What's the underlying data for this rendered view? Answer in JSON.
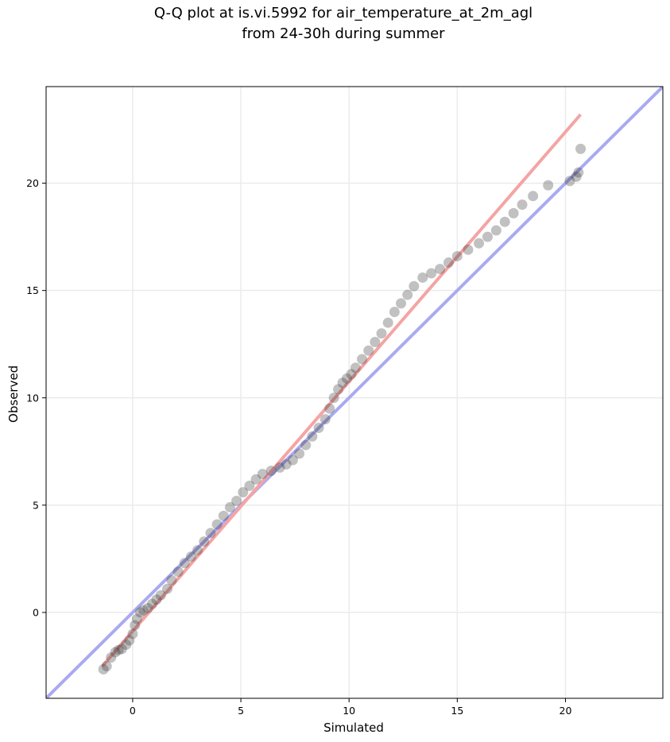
{
  "chart_data": {
    "type": "scatter",
    "title_line1": "Q-Q plot at is.vi.5992 for air_temperature_at_2m_agl",
    "title_line2": "from 24-30h during summer",
    "xlabel": "Simulated",
    "ylabel": "Observed",
    "xlim": [
      -4.0,
      24.5
    ],
    "ylim": [
      -4.0,
      24.5
    ],
    "xticks": [
      0,
      5,
      10,
      15,
      20
    ],
    "yticks": [
      0,
      5,
      10,
      15,
      20
    ],
    "xtick_labels": [
      "0",
      "5",
      "10",
      "15",
      "20"
    ],
    "ytick_labels": [
      "0",
      "5",
      "10",
      "15",
      "20"
    ],
    "grid": true,
    "colors": {
      "points": "#333333",
      "identity_line": "#aaaaf0",
      "fit_line": "#f4a4a4",
      "grid": "#ebebeb"
    },
    "identity_line": {
      "x": [
        -4.0,
        24.5
      ],
      "y": [
        -4.0,
        24.5
      ]
    },
    "fit_line": {
      "x": [
        -1.4,
        20.7
      ],
      "y": [
        -2.5,
        23.2
      ]
    },
    "points": {
      "x": [
        -1.35,
        -1.2,
        -1.0,
        -0.8,
        -0.65,
        -0.5,
        -0.3,
        -0.15,
        0.0,
        0.1,
        0.2,
        0.35,
        0.5,
        0.7,
        0.9,
        1.1,
        1.3,
        1.6,
        1.8,
        2.1,
        2.4,
        2.7,
        3.0,
        3.3,
        3.6,
        3.9,
        4.2,
        4.5,
        4.8,
        5.1,
        5.4,
        5.7,
        6.0,
        6.4,
        6.8,
        7.1,
        7.4,
        7.7,
        8.0,
        8.3,
        8.6,
        8.9,
        9.1,
        9.3,
        9.5,
        9.7,
        9.9,
        10.1,
        10.3,
        10.6,
        10.9,
        11.2,
        11.5,
        11.8,
        12.1,
        12.4,
        12.7,
        13.0,
        13.4,
        13.8,
        14.2,
        14.6,
        15.0,
        15.5,
        16.0,
        16.4,
        16.8,
        17.2,
        17.6,
        18.0,
        18.5,
        19.2,
        20.2,
        20.5,
        20.6,
        20.7
      ],
      "y": [
        -2.65,
        -2.5,
        -2.1,
        -1.85,
        -1.75,
        -1.7,
        -1.5,
        -1.3,
        -1.0,
        -0.6,
        -0.3,
        0.0,
        0.1,
        0.2,
        0.4,
        0.6,
        0.8,
        1.1,
        1.5,
        1.9,
        2.3,
        2.6,
        2.9,
        3.3,
        3.7,
        4.1,
        4.5,
        4.9,
        5.2,
        5.6,
        5.9,
        6.2,
        6.45,
        6.6,
        6.75,
        6.9,
        7.1,
        7.4,
        7.8,
        8.2,
        8.6,
        9.0,
        9.5,
        10.0,
        10.4,
        10.7,
        10.9,
        11.1,
        11.4,
        11.8,
        12.2,
        12.6,
        13.0,
        13.5,
        14.0,
        14.4,
        14.8,
        15.2,
        15.6,
        15.8,
        16.0,
        16.3,
        16.6,
        16.9,
        17.2,
        17.5,
        17.8,
        18.2,
        18.6,
        19.0,
        19.4,
        19.9,
        20.1,
        20.3,
        20.5,
        21.6
      ]
    }
  }
}
